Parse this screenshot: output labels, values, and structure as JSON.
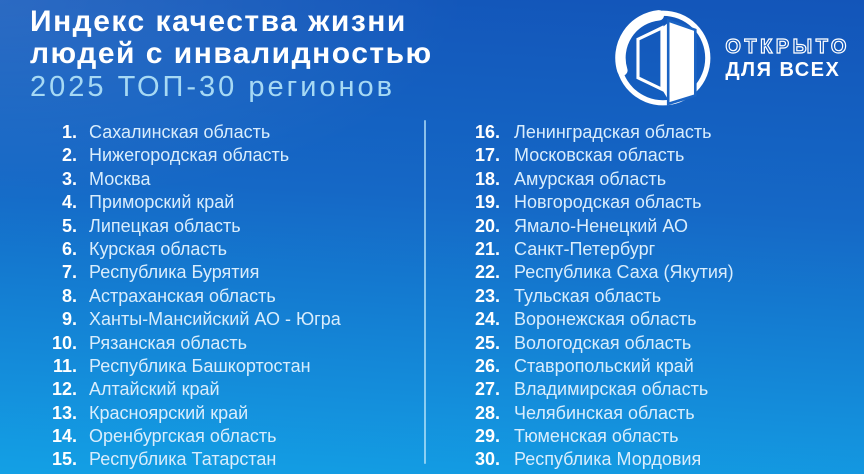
{
  "header": {
    "title_line1": "Индекс качества жизни",
    "title_line2": "людей с инвалидностью",
    "subtitle": "2025 ТОП-30 регионов"
  },
  "logo": {
    "line1": "ОТКРЫТО",
    "line2": "ДЛЯ ВСЕХ",
    "icon": "open-door-in-circle"
  },
  "list": {
    "columns": [
      {
        "items": [
          {
            "rank": "1.",
            "name": "Сахалинская область"
          },
          {
            "rank": "2.",
            "name": "Нижегородская область"
          },
          {
            "rank": "3.",
            "name": "Москва"
          },
          {
            "rank": "4.",
            "name": "Приморский край"
          },
          {
            "rank": "5.",
            "name": "Липецкая область"
          },
          {
            "rank": "6.",
            "name": "Курская область"
          },
          {
            "rank": "7.",
            "name": "Республика Бурятия"
          },
          {
            "rank": "8.",
            "name": "Астраханская область"
          },
          {
            "rank": "9.",
            "name": "Ханты-Мансийский АО - Югра"
          },
          {
            "rank": "10.",
            "name": "Рязанская область"
          },
          {
            "rank": "11.",
            "name": "Республика Башкортостан"
          },
          {
            "rank": "12.",
            "name": "Алтайский край"
          },
          {
            "rank": "13.",
            "name": "Красноярский край"
          },
          {
            "rank": "14.",
            "name": "Оренбургская область"
          },
          {
            "rank": "15.",
            "name": "Республика Татарстан"
          }
        ]
      },
      {
        "items": [
          {
            "rank": "16.",
            "name": "Ленинградская область"
          },
          {
            "rank": "17.",
            "name": "Московская область"
          },
          {
            "rank": "18.",
            "name": "Амурская область"
          },
          {
            "rank": "19.",
            "name": "Новгородская область"
          },
          {
            "rank": "20.",
            "name": "Ямало-Ненецкий АО"
          },
          {
            "rank": "21.",
            "name": "Санкт-Петербург"
          },
          {
            "rank": "22.",
            "name": "Республика Саха (Якутия)"
          },
          {
            "rank": "23.",
            "name": "Тульская область"
          },
          {
            "rank": "24.",
            "name": "Воронежская область"
          },
          {
            "rank": "25.",
            "name": "Вологодская область"
          },
          {
            "rank": "26.",
            "name": "Ставропольский край"
          },
          {
            "rank": "27.",
            "name": "Владимирская область"
          },
          {
            "rank": "28.",
            "name": "Челябинская область"
          },
          {
            "rank": "29.",
            "name": "Тюменская область"
          },
          {
            "rank": "30.",
            "name": "Республика Мордовия"
          }
        ]
      }
    ]
  },
  "colors": {
    "background_top": "#1355b9",
    "background_bottom": "#13a0e5",
    "title": "#ffffff",
    "subtitle": "#a6d9f4",
    "rank": "#ffffff",
    "region_name": "#d9edfc",
    "divider": "#bae4fa",
    "logo": "#ffffff"
  }
}
